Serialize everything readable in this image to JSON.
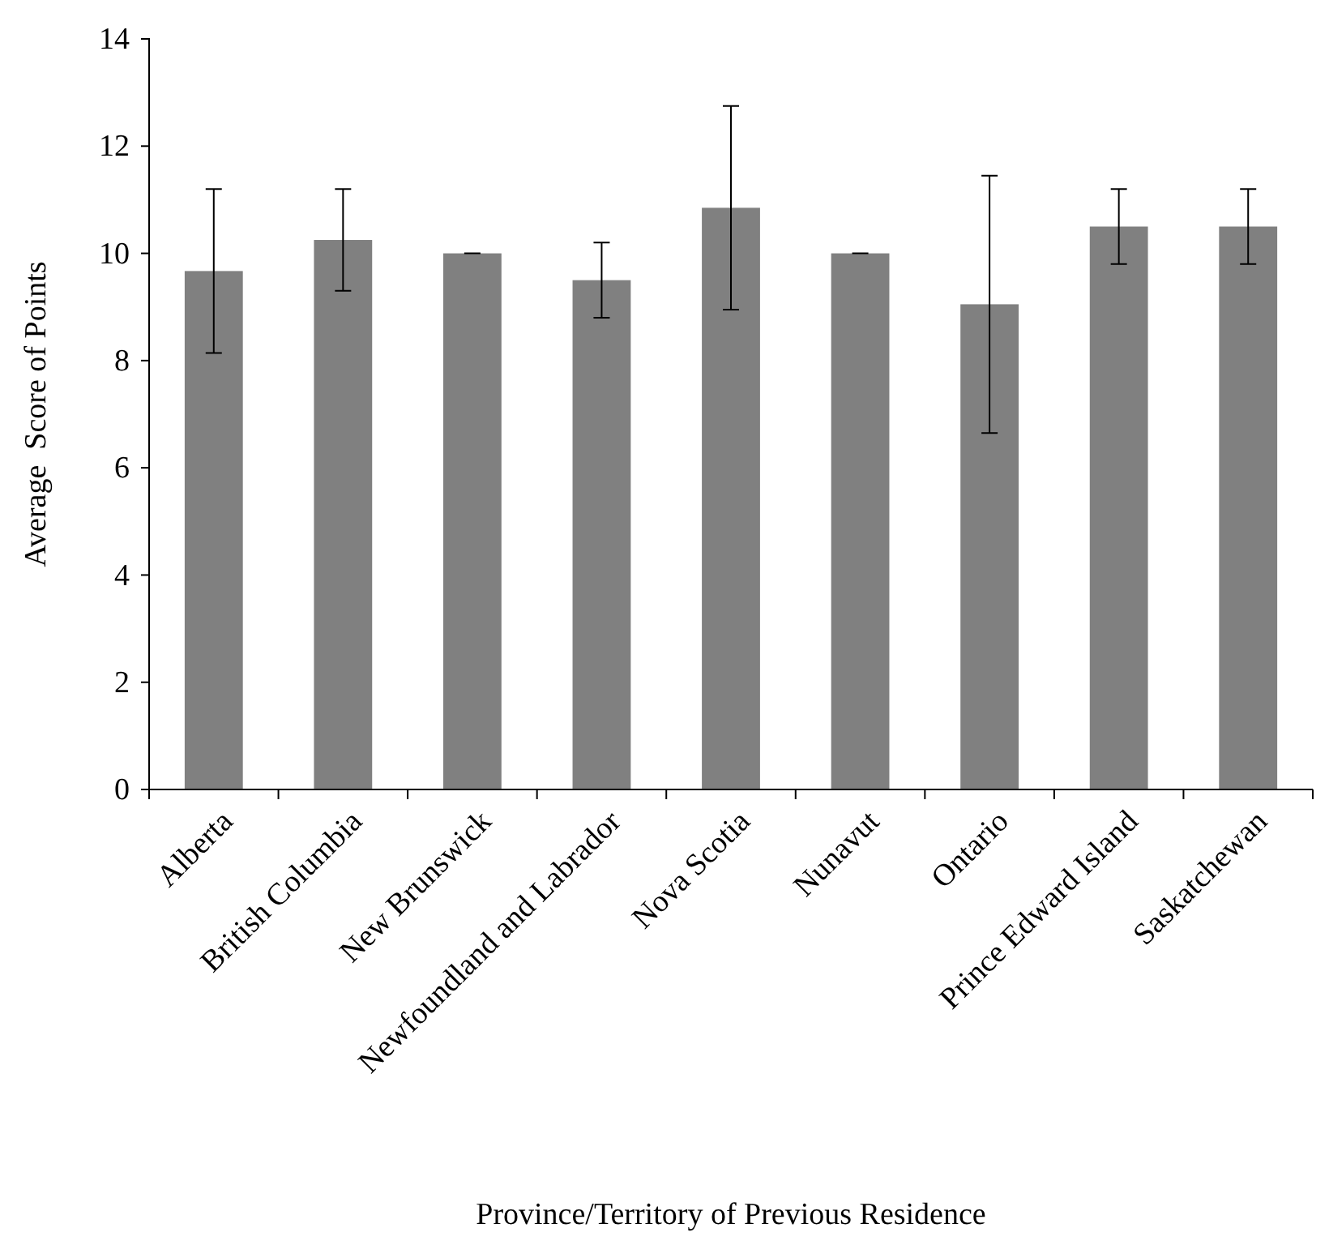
{
  "chart_data": {
    "type": "bar",
    "xlabel": "Province/Territory of Previous Residence",
    "ylabel": "Average  Score of Points",
    "categories": [
      "Alberta",
      "British Columbia",
      "New Brunswick",
      "Newfoundland and Labrador",
      "Nova Scotia",
      "Nunavut",
      "Ontario",
      "Prince Edward Island",
      "Saskatchewan"
    ],
    "values": [
      9.67,
      10.25,
      10,
      9.5,
      10.85,
      10,
      9.05,
      10.5,
      10.5
    ],
    "errors": [
      1.53,
      0.95,
      0,
      0.7,
      1.9,
      0,
      2.4,
      0.7,
      0.7
    ],
    "color": "#808080",
    "ylim": [
      0,
      14
    ],
    "yticks": [
      0,
      2,
      4,
      6,
      8,
      10,
      12,
      14
    ],
    "grid": false
  }
}
